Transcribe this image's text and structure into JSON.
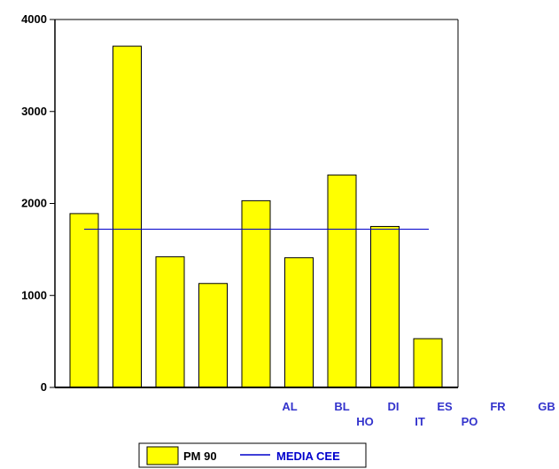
{
  "chart_data": {
    "type": "bar",
    "ylim": [
      0,
      4000
    ],
    "yticks": [
      "0",
      "1000",
      "2000",
      "3000",
      "4000"
    ],
    "bar_values": [
      1890,
      3710,
      1420,
      1130,
      2030,
      1410,
      2310,
      1750,
      530
    ],
    "x_labels": [
      "AL",
      "BL",
      "HO",
      "DI",
      "IT",
      "ES",
      "PO",
      "FR",
      "GB"
    ],
    "series": [
      {
        "name": "PM 90",
        "kind": "bar",
        "color": "#ffff00",
        "edge_color": "#000000"
      },
      {
        "name": "MEDIA CEE",
        "kind": "line",
        "value": 1720,
        "color": "#0000cc"
      }
    ],
    "label_color": "#3333cc",
    "legend": {
      "placement": "bottom-center"
    },
    "grid": false
  }
}
